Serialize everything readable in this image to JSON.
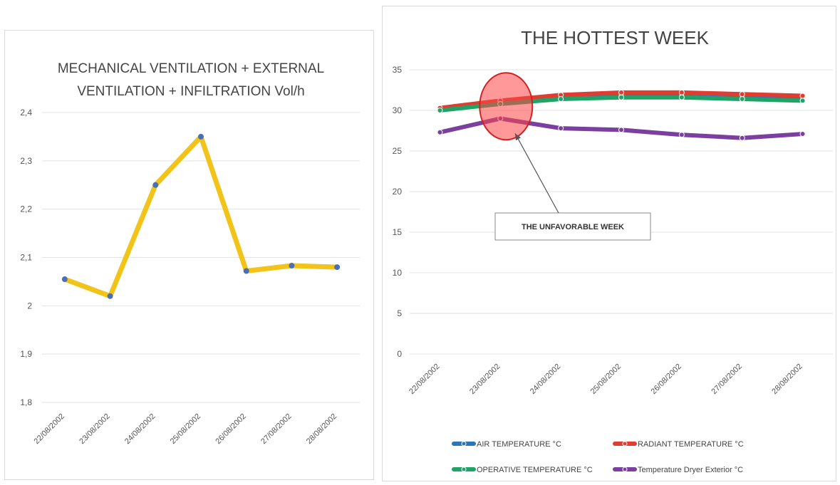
{
  "chart_data": [
    {
      "type": "line",
      "title_lines": [
        "MECHANICAL VENTILATION + EXTERNAL",
        "VENTILATION + INFILTRATION Vol/h"
      ],
      "categories": [
        "22/08/2002",
        "23/08/2002",
        "24/08/2002",
        "25/08/2002",
        "26/08/2002",
        "27/08/2002",
        "28/08/2002"
      ],
      "y_ticks": [
        "1,8",
        "1,9",
        "2",
        "2,1",
        "2,2",
        "2,3",
        "2,4"
      ],
      "ylim": [
        1.8,
        2.4
      ],
      "grid": true,
      "series": [
        {
          "values": [
            2.055,
            2.02,
            2.25,
            2.35,
            2.072,
            2.083,
            2.08
          ],
          "color": "#f2c318",
          "marker_color": "#4a6fb5"
        }
      ]
    },
    {
      "type": "line",
      "title": "THE HOTTEST WEEK",
      "categories": [
        "22/08/2002",
        "23/08/2002",
        "24/08/2002",
        "25/08/2002",
        "26/08/2002",
        "27/08/2002",
        "28/08/2002"
      ],
      "y_ticks": [
        "0",
        "5",
        "10",
        "15",
        "20",
        "25",
        "30",
        "35"
      ],
      "ylim": [
        0,
        35
      ],
      "grid": true,
      "legend_position": "bottom",
      "series": [
        {
          "name": "AIR TEMPERATURE °C",
          "values": [
            30.0,
            31.0,
            31.5,
            31.8,
            31.7,
            31.5,
            31.3
          ],
          "color": "#2e75b6"
        },
        {
          "name": "RADIANT TEMPERATURE °C",
          "values": [
            30.3,
            31.2,
            31.9,
            32.2,
            32.2,
            32.0,
            31.8
          ],
          "color": "#e03c31"
        },
        {
          "name": "OPERATIVE TEMPERATURE °C",
          "values": [
            30.0,
            30.8,
            31.4,
            31.6,
            31.6,
            31.4,
            31.2
          ],
          "color": "#21a367"
        },
        {
          "name": "Temperature Dryer Exterior °C",
          "values": [
            27.3,
            29.0,
            27.8,
            27.6,
            27.0,
            26.6,
            27.1
          ],
          "color": "#7b3fa0"
        }
      ],
      "annotation": {
        "text": "THE UNFAVORABLE WEEK",
        "highlight_category": "23/08/2002",
        "highlight_value": 30.5
      }
    }
  ]
}
